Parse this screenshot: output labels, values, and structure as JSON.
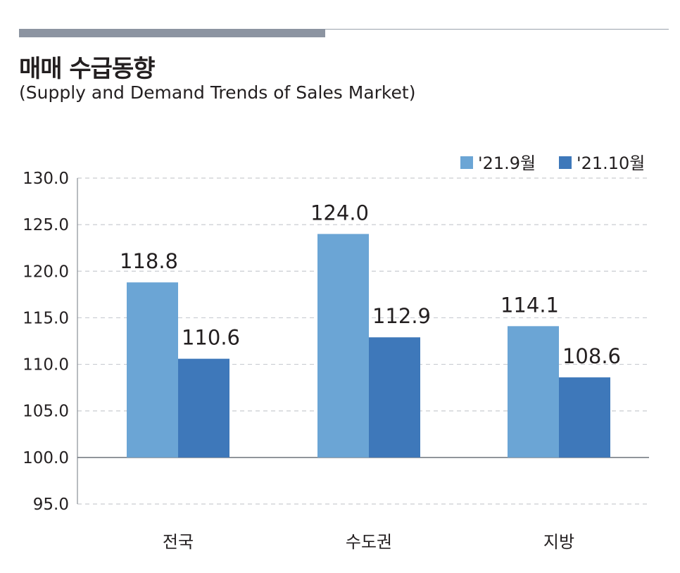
{
  "header": {
    "title": "매매 수급동향",
    "subtitle": "(Supply and Demand Trends of Sales Market)"
  },
  "chart_data": {
    "type": "bar",
    "categories": [
      "전국",
      "수도권",
      "지방"
    ],
    "series": [
      {
        "name": "'21.9월",
        "values": [
          118.8,
          124.0,
          114.1
        ],
        "color": "#6ba5d5"
      },
      {
        "name": "'21.10월",
        "values": [
          110.6,
          112.9,
          108.6
        ],
        "color": "#3e78ba"
      }
    ],
    "data_labels": [
      [
        "118.8",
        "124.0",
        "114.1"
      ],
      [
        "110.6",
        "112.9",
        "108.6"
      ]
    ],
    "baseline": 100.0,
    "ylim": [
      95.0,
      130.0
    ],
    "yticks": [
      130.0,
      125.0,
      120.0,
      115.0,
      110.0,
      105.0,
      100.0,
      95.0
    ],
    "ytick_labels": [
      "130.0",
      "125.0",
      "120.0",
      "115.0",
      "110.0",
      "105.0",
      "100.0",
      "95.0"
    ],
    "grid": true,
    "legend_position": "top-right"
  }
}
